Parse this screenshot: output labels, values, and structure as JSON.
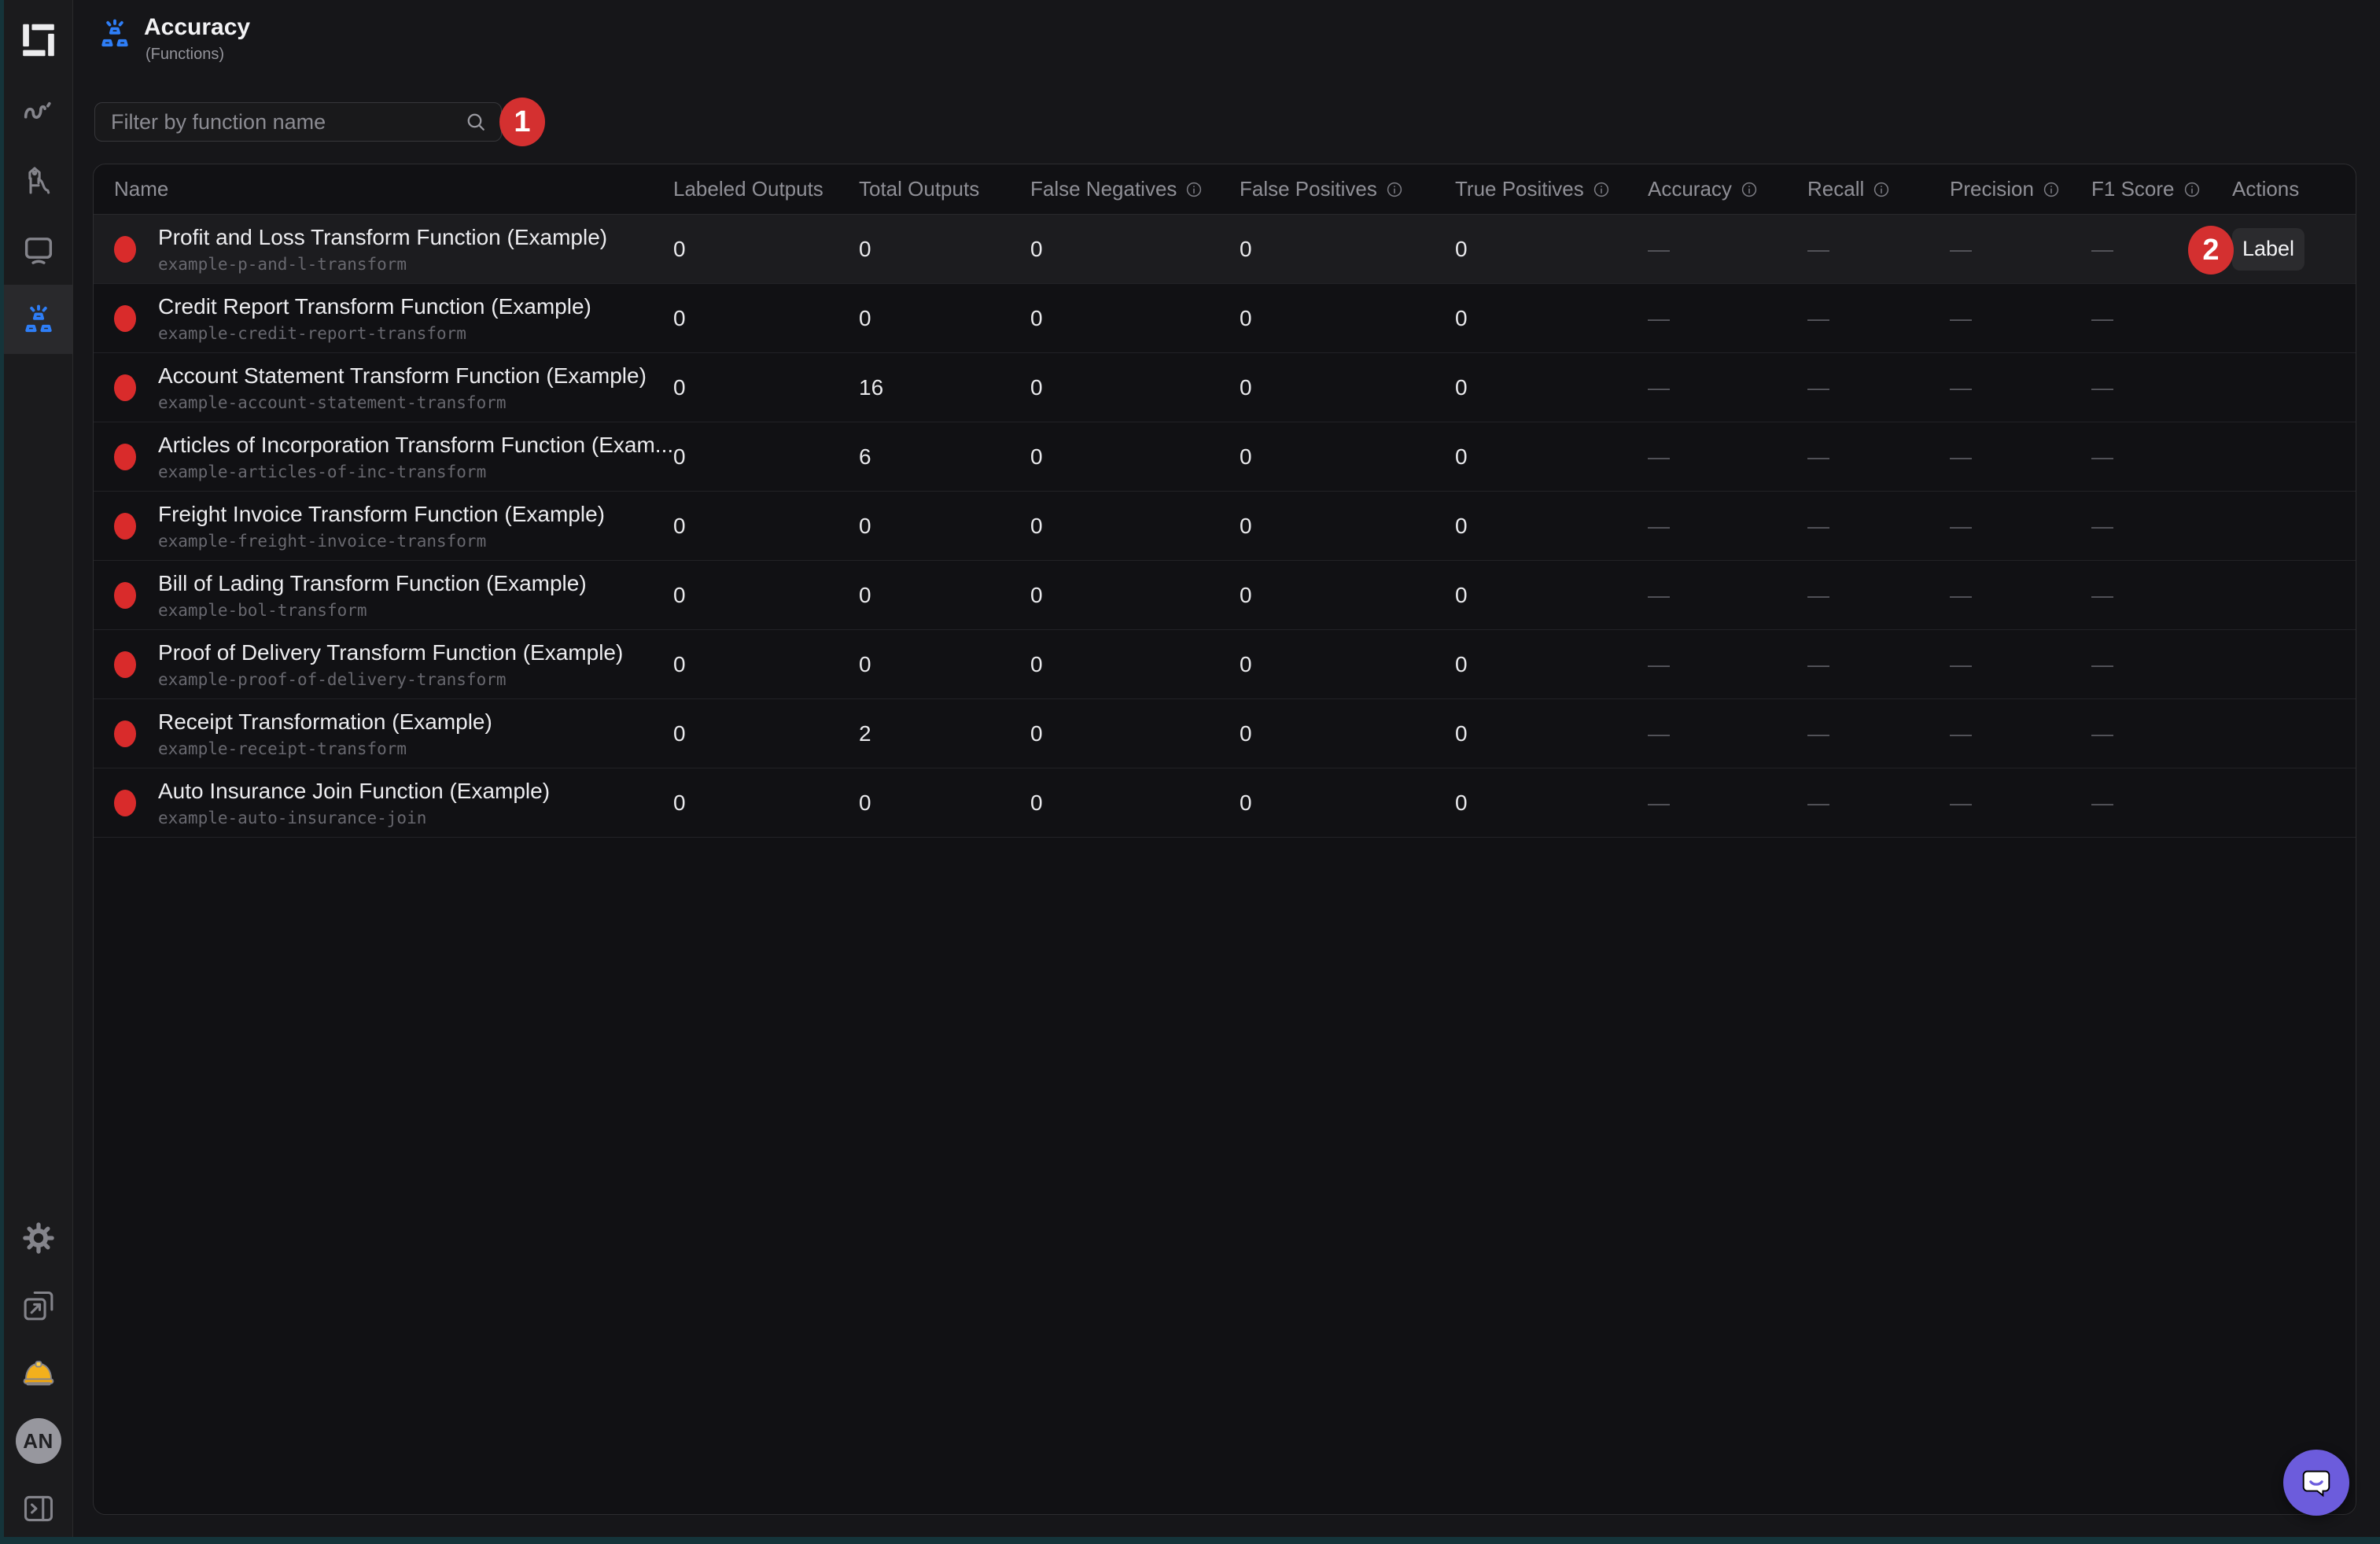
{
  "header": {
    "title": "Accuracy",
    "subtitle": "(Functions)"
  },
  "filter": {
    "placeholder": "Filter by function name",
    "value": ""
  },
  "sidebar": {
    "items_top": [
      {
        "name": "activity",
        "icon": "activity",
        "active": false
      },
      {
        "name": "playground",
        "icon": "playground",
        "active": false
      },
      {
        "name": "monitor",
        "icon": "monitor",
        "active": false
      },
      {
        "name": "accuracy",
        "icon": "functions",
        "active": true
      }
    ],
    "items_bottom": [
      {
        "name": "settings",
        "icon": "gear"
      },
      {
        "name": "open-external",
        "icon": "external-link"
      },
      {
        "name": "construction",
        "icon": "hard-hat"
      },
      {
        "name": "account",
        "icon": "avatar",
        "label": "AN"
      },
      {
        "name": "collapse-sidebar",
        "icon": "collapse-panel"
      }
    ]
  },
  "table": {
    "columns": [
      {
        "label": "Name",
        "info": false
      },
      {
        "label": "Labeled Outputs",
        "info": false
      },
      {
        "label": "Total Outputs",
        "info": false
      },
      {
        "label": "False Negatives",
        "info": true
      },
      {
        "label": "False Positives",
        "info": true
      },
      {
        "label": "True Positives",
        "info": true
      },
      {
        "label": "Accuracy",
        "info": true
      },
      {
        "label": "Recall",
        "info": true
      },
      {
        "label": "Precision",
        "info": true
      },
      {
        "label": "F1 Score",
        "info": true
      },
      {
        "label": "Actions",
        "info": false
      }
    ],
    "rows": [
      {
        "name": "Profit and Loss Transform Function (Example)",
        "slug": "example-p-and-l-transform",
        "cells": [
          "0",
          "0",
          "0",
          "0",
          "0",
          "—",
          "—",
          "—",
          "—"
        ],
        "action": "Label",
        "highlighted": true
      },
      {
        "name": "Credit Report Transform Function (Example)",
        "slug": "example-credit-report-transform",
        "cells": [
          "0",
          "0",
          "0",
          "0",
          "0",
          "—",
          "—",
          "—",
          "—"
        ],
        "action": null,
        "highlighted": false
      },
      {
        "name": "Account Statement Transform Function (Example)",
        "slug": "example-account-statement-transform",
        "cells": [
          "0",
          "16",
          "0",
          "0",
          "0",
          "—",
          "—",
          "—",
          "—"
        ],
        "action": null,
        "highlighted": false
      },
      {
        "name": "Articles of Incorporation Transform Function (Exam...",
        "slug": "example-articles-of-inc-transform",
        "cells": [
          "0",
          "6",
          "0",
          "0",
          "0",
          "—",
          "—",
          "—",
          "—"
        ],
        "action": null,
        "highlighted": false
      },
      {
        "name": "Freight Invoice Transform Function (Example)",
        "slug": "example-freight-invoice-transform",
        "cells": [
          "0",
          "0",
          "0",
          "0",
          "0",
          "—",
          "—",
          "—",
          "—"
        ],
        "action": null,
        "highlighted": false
      },
      {
        "name": "Bill of Lading Transform Function (Example)",
        "slug": "example-bol-transform",
        "cells": [
          "0",
          "0",
          "0",
          "0",
          "0",
          "—",
          "—",
          "—",
          "—"
        ],
        "action": null,
        "highlighted": false
      },
      {
        "name": "Proof of Delivery Transform Function (Example)",
        "slug": "example-proof-of-delivery-transform",
        "cells": [
          "0",
          "0",
          "0",
          "0",
          "0",
          "—",
          "—",
          "—",
          "—"
        ],
        "action": null,
        "highlighted": false
      },
      {
        "name": "Receipt Transformation (Example)",
        "slug": "example-receipt-transform",
        "cells": [
          "0",
          "2",
          "0",
          "0",
          "0",
          "—",
          "—",
          "—",
          "—"
        ],
        "action": null,
        "highlighted": false
      },
      {
        "name": "Auto Insurance Join Function (Example)",
        "slug": "example-auto-insurance-join",
        "cells": [
          "0",
          "0",
          "0",
          "0",
          "0",
          "—",
          "—",
          "—",
          "—"
        ],
        "action": null,
        "highlighted": false
      }
    ]
  },
  "annotations": [
    {
      "number": "1"
    },
    {
      "number": "2"
    }
  ],
  "colors": {
    "accent_blue": "#2e7ef7",
    "status_red": "#d92b2b",
    "annotation_red": "#d43030",
    "chat_purple": "#6c5cdc"
  }
}
